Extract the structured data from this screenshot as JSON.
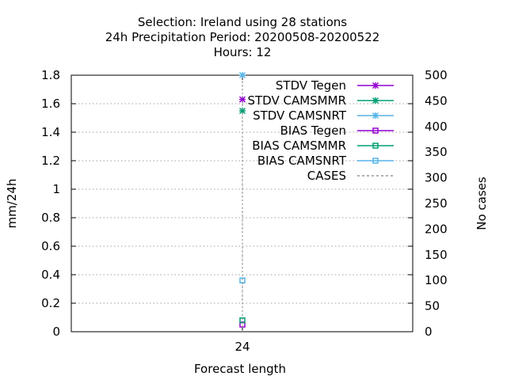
{
  "chart_data": {
    "type": "line",
    "title_lines": [
      "Selection: Ireland using    28 stations",
      "24h Precipitation    Period: 20200508-20200522",
      "Hours:  12"
    ],
    "xlabel": "Forecast length",
    "ylabel": "mm/24h",
    "y2label": "No cases",
    "x_categories": [
      "24"
    ],
    "ylim": [
      0,
      1.8
    ],
    "y_ticks": [
      0,
      0.2,
      0.4,
      0.6,
      0.8,
      1,
      1.2,
      1.4,
      1.6,
      1.8
    ],
    "y2lim": [
      0,
      500
    ],
    "y2_ticks": [
      0,
      50,
      100,
      150,
      200,
      250,
      300,
      350,
      400,
      450,
      500
    ],
    "grid": true,
    "legend_position": "top-right",
    "series": [
      {
        "name": "STDV Tegen",
        "color": "#9400d3",
        "marker": "star",
        "axis": "y",
        "x": [
          "24"
        ],
        "values": [
          1.63
        ]
      },
      {
        "name": "STDV CAMSMMR",
        "color": "#009e73",
        "marker": "star",
        "axis": "y",
        "x": [
          "24"
        ],
        "values": [
          1.55
        ]
      },
      {
        "name": "STDV CAMSNRT",
        "color": "#56b4e9",
        "marker": "star",
        "axis": "y",
        "x": [
          "24"
        ],
        "values": [
          1.8
        ]
      },
      {
        "name": "BIAS Tegen",
        "color": "#9400d3",
        "marker": "square",
        "axis": "y",
        "x": [
          "24"
        ],
        "values": [
          0.05
        ]
      },
      {
        "name": "BIAS CAMSMMR",
        "color": "#009e73",
        "marker": "square",
        "axis": "y",
        "x": [
          "24"
        ],
        "values": [
          0.08
        ]
      },
      {
        "name": "BIAS CAMSNRT",
        "color": "#56b4e9",
        "marker": "square",
        "axis": "y",
        "x": [
          "24"
        ],
        "values": [
          0.36
        ]
      },
      {
        "name": "CASES",
        "color": "#808080",
        "marker": "dotted",
        "axis": "y2",
        "x": [
          "24"
        ],
        "values": [
          500
        ]
      }
    ]
  }
}
